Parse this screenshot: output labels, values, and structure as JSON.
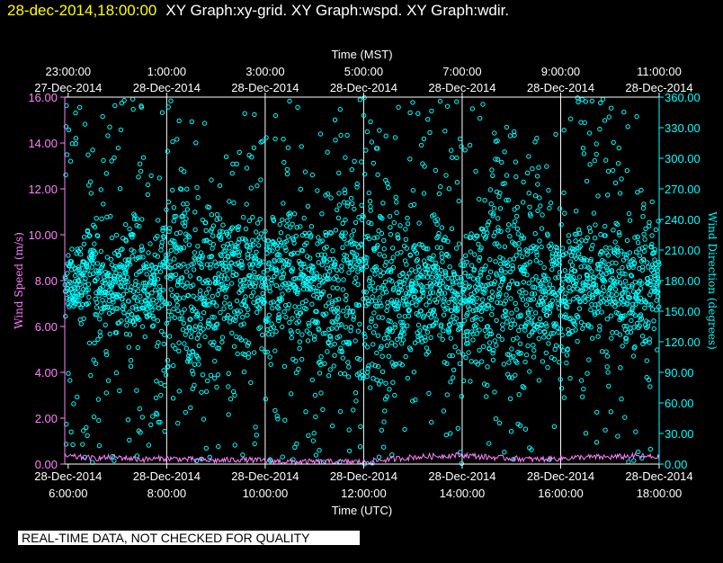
{
  "title": {
    "datetime": "28-dec-2014,18:00:00",
    "graphs": "XY Graph:xy-grid.  XY Graph:wspd.  XY Graph:wdir."
  },
  "notice": "REAL-TIME DATA, NOT CHECKED FOR QUALITY",
  "colors": {
    "background": "#000000",
    "axes": "#ffffff",
    "wind_speed": "#ff80ff",
    "wind_direction": "#00ffff",
    "title_date": "#ffff00"
  },
  "chart_data": {
    "type": "scatter",
    "title": "",
    "top_axis": {
      "label": "Time (MST)",
      "ticks": [
        {
          "time": "23:00:00",
          "date": "27-Dec-2014"
        },
        {
          "time": "1:00:00",
          "date": "28-Dec-2014"
        },
        {
          "time": "3:00:00",
          "date": "28-Dec-2014"
        },
        {
          "time": "5:00:00",
          "date": "28-Dec-2014"
        },
        {
          "time": "7:00:00",
          "date": "28-Dec-2014"
        },
        {
          "time": "9:00:00",
          "date": "28-Dec-2014"
        },
        {
          "time": "11:00:00",
          "date": "28-Dec-2014"
        }
      ]
    },
    "bottom_axis": {
      "label": "Time (UTC)",
      "ticks": [
        {
          "time": "6:00:00",
          "date": "28-Dec-2014"
        },
        {
          "time": "8:00:00",
          "date": "28-Dec-2014"
        },
        {
          "time": "10:00:00",
          "date": "28-Dec-2014"
        },
        {
          "time": "12:00:00",
          "date": "28-Dec-2014"
        },
        {
          "time": "14:00:00",
          "date": "28-Dec-2014"
        },
        {
          "time": "16:00:00",
          "date": "28-Dec-2014"
        },
        {
          "time": "18:00:00",
          "date": "28-Dec-2014"
        }
      ],
      "range": [
        "2014-12-28 05:56 UTC",
        "2014-12-28 18:00 UTC"
      ]
    },
    "left_axis": {
      "label": "Wind Speed (m/s)",
      "ylim": [
        0,
        16
      ],
      "ticks": [
        "0.00",
        "2.00",
        "4.00",
        "6.00",
        "8.00",
        "10.00",
        "12.00",
        "14.00",
        "16.00"
      ]
    },
    "right_axis": {
      "label": "Wind Direction (degrees)",
      "ylim": [
        0,
        360
      ],
      "ticks": [
        "0.00",
        "30.00",
        "60.00",
        "90.00",
        "120.00",
        "150.00",
        "180.00",
        "210.00",
        "240.00",
        "270.00",
        "300.00",
        "330.00",
        "360.00"
      ]
    },
    "grid": "vertical lines at bottom-axis ticks",
    "series": [
      {
        "axis": "left",
        "style": "line",
        "x_hours_utc": [
          5.93,
          6.5,
          7.0,
          7.5,
          8.0,
          8.5,
          9.0,
          9.5,
          10.0,
          10.5,
          11.0,
          11.5,
          12.0,
          12.5,
          13.0,
          13.5,
          14.0,
          14.5,
          15.0,
          15.5,
          16.0,
          16.5,
          17.0,
          17.5,
          18.0
        ],
        "values": [
          0.35,
          0.25,
          0.3,
          0.2,
          0.25,
          0.2,
          0.15,
          0.2,
          0.15,
          0.1,
          0.1,
          0.1,
          0.1,
          0.2,
          0.3,
          0.35,
          0.4,
          0.3,
          0.25,
          0.2,
          0.25,
          0.3,
          0.3,
          0.35,
          0.3
        ]
      },
      {
        "axis": "right",
        "style": "markers",
        "description_values_degrees": "dense scatter mostly 140-220 with frequent spikes to 0 and 360",
        "x_hours_utc": [
          5.93,
          6.25,
          6.5,
          6.75,
          7.0,
          7.25,
          7.5,
          7.75,
          8.0,
          8.25,
          8.5,
          8.75,
          9.0,
          9.25,
          9.5,
          9.75,
          10.0,
          10.25,
          10.5,
          10.75,
          11.0,
          11.25,
          11.5,
          11.75,
          12.0,
          12.25,
          12.5,
          12.75,
          13.0,
          13.25,
          13.5,
          13.75,
          14.0,
          14.25,
          14.5,
          14.75,
          15.0,
          15.25,
          15.5,
          15.75,
          16.0,
          16.25,
          16.5,
          16.75,
          17.0,
          17.25,
          17.5,
          17.75,
          18.0
        ],
        "center_degrees": [
          175,
          180,
          185,
          170,
          175,
          185,
          180,
          175,
          175,
          185,
          170,
          180,
          175,
          185,
          170,
          190,
          180,
          175,
          185,
          180,
          175,
          170,
          165,
          175,
          180,
          170,
          165,
          160,
          170,
          175,
          180,
          165,
          155,
          165,
          170,
          175,
          165,
          170,
          160,
          175,
          170,
          175,
          185,
          180,
          175,
          185,
          180,
          175,
          175
        ],
        "spread_degrees": [
          30,
          35,
          60,
          40,
          45,
          80,
          60,
          50,
          90,
          110,
          100,
          100,
          90,
          100,
          70,
          50,
          60,
          70,
          80,
          60,
          70,
          80,
          90,
          110,
          120,
          120,
          110,
          90,
          70,
          60,
          55,
          60,
          60,
          70,
          100,
          110,
          110,
          120,
          100,
          90,
          80,
          70,
          60,
          55,
          50,
          60,
          70,
          90,
          50
        ]
      }
    ]
  }
}
